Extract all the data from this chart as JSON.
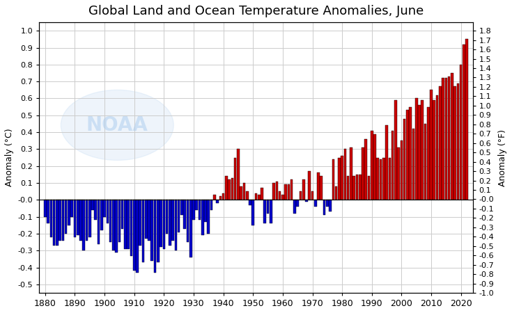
{
  "title": "Global Land and Ocean Temperature Anomalies, June",
  "ylabel_left": "Anomaly (°C)",
  "ylabel_right": "Anomaly (°F)",
  "ylim_left": [
    -0.55,
    1.05
  ],
  "ylim_right": [
    -1.0,
    1.8
  ],
  "xticks": [
    1880,
    1890,
    1900,
    1910,
    1920,
    1930,
    1940,
    1950,
    1960,
    1970,
    1980,
    1990,
    2000,
    2010,
    2020
  ],
  "yticks_left": [
    -0.5,
    -0.4,
    -0.3,
    -0.2,
    -0.1,
    -0.0,
    0.1,
    0.2,
    0.3,
    0.4,
    0.5,
    0.6,
    0.7,
    0.8,
    0.9,
    1.0
  ],
  "yticks_right": [
    -1.0,
    -0.9,
    -0.8,
    -0.7,
    -0.6,
    -0.5,
    -0.4,
    -0.3,
    -0.2,
    -0.1,
    -0.0,
    0.1,
    0.2,
    0.3,
    0.4,
    0.5,
    0.6,
    0.7,
    0.8,
    0.9,
    1.0,
    1.1,
    1.2,
    1.3,
    1.4,
    1.5,
    1.6,
    1.7,
    1.8
  ],
  "color_pos": "#cc0000",
  "color_neg": "#0000cc",
  "background_color": "#ffffff",
  "grid_color": "#cccccc",
  "years": [
    1880,
    1881,
    1882,
    1883,
    1884,
    1885,
    1886,
    1887,
    1888,
    1889,
    1890,
    1891,
    1892,
    1893,
    1894,
    1895,
    1896,
    1897,
    1898,
    1899,
    1900,
    1901,
    1902,
    1903,
    1904,
    1905,
    1906,
    1907,
    1908,
    1909,
    1910,
    1911,
    1912,
    1913,
    1914,
    1915,
    1916,
    1917,
    1918,
    1919,
    1920,
    1921,
    1922,
    1923,
    1924,
    1925,
    1926,
    1927,
    1928,
    1929,
    1930,
    1931,
    1932,
    1933,
    1934,
    1935,
    1936,
    1937,
    1938,
    1939,
    1940,
    1941,
    1942,
    1943,
    1944,
    1945,
    1946,
    1947,
    1948,
    1949,
    1950,
    1951,
    1952,
    1953,
    1954,
    1955,
    1956,
    1957,
    1958,
    1959,
    1960,
    1961,
    1962,
    1963,
    1964,
    1965,
    1966,
    1967,
    1968,
    1969,
    1970,
    1971,
    1972,
    1973,
    1974,
    1975,
    1976,
    1977,
    1978,
    1979,
    1980,
    1981,
    1982,
    1983,
    1984,
    1985,
    1986,
    1987,
    1988,
    1989,
    1990,
    1991,
    1992,
    1993,
    1994,
    1995,
    1996,
    1997,
    1998,
    1999,
    2000,
    2001,
    2002,
    2003,
    2004,
    2005,
    2006,
    2007,
    2008,
    2009,
    2010,
    2011,
    2012,
    2013,
    2014,
    2015,
    2016,
    2017,
    2018,
    2019,
    2020,
    2021,
    2022
  ],
  "anomalies": [
    -0.1,
    -0.14,
    -0.22,
    -0.27,
    -0.27,
    -0.24,
    -0.24,
    -0.2,
    -0.15,
    -0.1,
    -0.22,
    -0.21,
    -0.24,
    -0.3,
    -0.24,
    -0.22,
    -0.06,
    -0.12,
    -0.26,
    -0.18,
    -0.1,
    -0.14,
    -0.25,
    -0.3,
    -0.31,
    -0.25,
    -0.17,
    -0.29,
    -0.29,
    -0.33,
    -0.42,
    -0.43,
    -0.27,
    -0.37,
    -0.23,
    -0.24,
    -0.36,
    -0.43,
    -0.37,
    -0.28,
    -0.29,
    -0.2,
    -0.27,
    -0.24,
    -0.3,
    -0.19,
    -0.09,
    -0.17,
    -0.25,
    -0.34,
    -0.12,
    -0.06,
    -0.12,
    -0.21,
    -0.13,
    -0.2,
    -0.06,
    0.03,
    -0.02,
    0.02,
    0.04,
    0.14,
    0.12,
    0.13,
    0.25,
    0.3,
    0.08,
    0.1,
    0.05,
    -0.03,
    -0.15,
    0.04,
    0.03,
    0.07,
    -0.14,
    -0.08,
    -0.14,
    0.1,
    0.11,
    0.05,
    0.03,
    0.09,
    0.09,
    0.12,
    -0.08,
    -0.04,
    0.05,
    0.12,
    -0.01,
    0.17,
    0.05,
    -0.04,
    0.16,
    0.14,
    -0.09,
    -0.04,
    -0.07,
    0.24,
    0.08,
    0.25,
    0.26,
    0.3,
    0.14,
    0.31,
    0.14,
    0.15,
    0.15,
    0.31,
    0.36,
    0.14,
    0.41,
    0.39,
    0.25,
    0.24,
    0.25,
    0.44,
    0.25,
    0.41,
    0.59,
    0.31,
    0.35,
    0.48,
    0.53,
    0.55,
    0.42,
    0.6,
    0.56,
    0.59,
    0.45,
    0.55,
    0.65,
    0.59,
    0.62,
    0.67,
    0.72,
    0.72,
    0.73,
    0.75,
    0.67,
    0.69,
    0.8,
    0.92,
    0.95
  ]
}
